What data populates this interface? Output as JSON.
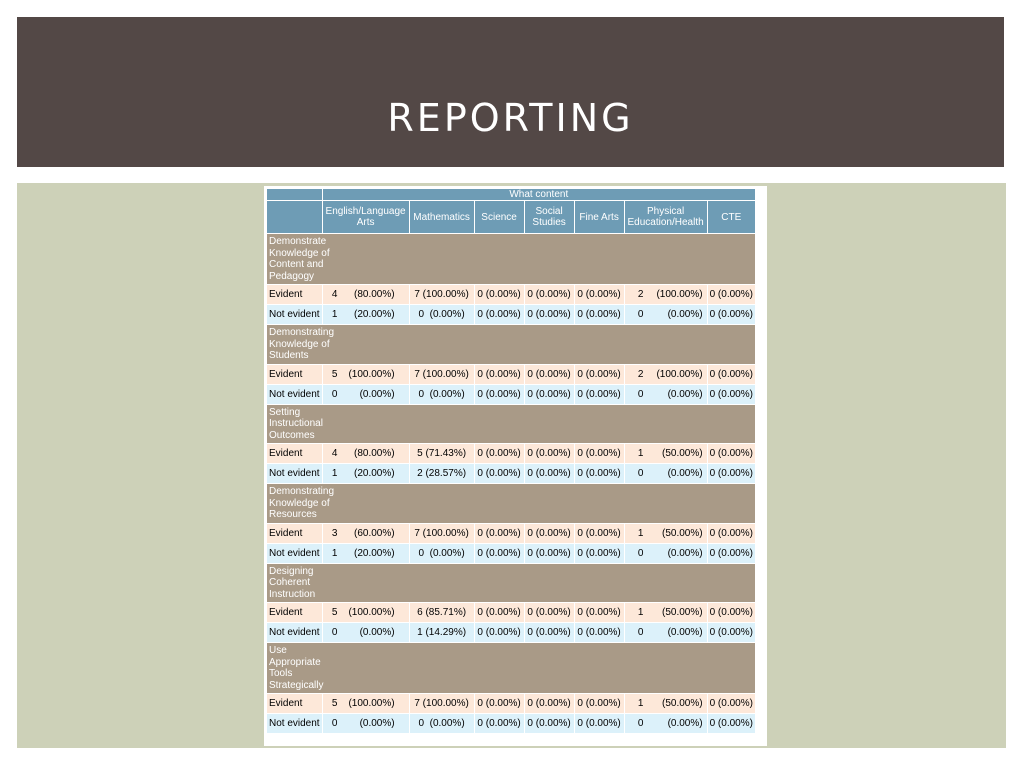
{
  "slide": {
    "title": "REPORTING"
  },
  "table": {
    "group_header": "What content",
    "columns": [
      "English/Language Arts",
      "Mathematics",
      "Science",
      "Social Studies",
      "Fine Arts",
      "Physical Education/Health",
      "CTE"
    ],
    "columns_lines": [
      [
        "English/Language",
        "Arts"
      ],
      [
        "Mathematics"
      ],
      [
        "Science"
      ],
      [
        "Social",
        "Studies"
      ],
      [
        "Fine Arts"
      ],
      [
        "Physical",
        "Education/Health"
      ],
      [
        "CTE"
      ]
    ],
    "sections": [
      {
        "title": "Demonstrate Knowledge of Content and Pedagogy",
        "title_lines": [
          "Demonstrate",
          "Knowledge of",
          "Content and",
          "Pedagogy"
        ],
        "rows": [
          {
            "label": "Evident",
            "ela": [
              "4",
              "(80.00%)"
            ],
            "math": "7 (100.00%)",
            "science": "0 (0.00%)",
            "social": "0 (0.00%)",
            "fine": "0 (0.00%)",
            "pe": [
              "2",
              "(100.00%)"
            ],
            "cte": "0 (0.00%)"
          },
          {
            "label": "Not evident",
            "ela": [
              "1",
              "(20.00%)"
            ],
            "math": "0  (0.00%)",
            "science": "0 (0.00%)",
            "social": "0 (0.00%)",
            "fine": "0 (0.00%)",
            "pe": [
              "0",
              "(0.00%)"
            ],
            "cte": "0 (0.00%)"
          }
        ]
      },
      {
        "title": "Demonstrating Knowledge of Students",
        "title_lines": [
          "Demonstrating",
          "Knowledge of",
          "Students"
        ],
        "rows": [
          {
            "label": "Evident",
            "ela": [
              "5",
              "(100.00%)"
            ],
            "math": "7 (100.00%)",
            "science": "0 (0.00%)",
            "social": "0 (0.00%)",
            "fine": "0 (0.00%)",
            "pe": [
              "2",
              "(100.00%)"
            ],
            "cte": "0 (0.00%)"
          },
          {
            "label": "Not evident",
            "ela": [
              "0",
              "(0.00%)"
            ],
            "math": "0  (0.00%)",
            "science": "0 (0.00%)",
            "social": "0 (0.00%)",
            "fine": "0 (0.00%)",
            "pe": [
              "0",
              "(0.00%)"
            ],
            "cte": "0 (0.00%)"
          }
        ]
      },
      {
        "title": "Setting Instructional Outcomes",
        "title_lines": [
          "Setting",
          "Instructional",
          "Outcomes"
        ],
        "rows": [
          {
            "label": "Evident",
            "ela": [
              "4",
              "(80.00%)"
            ],
            "math": "5 (71.43%)",
            "science": "0 (0.00%)",
            "social": "0 (0.00%)",
            "fine": "0 (0.00%)",
            "pe": [
              "1",
              "(50.00%)"
            ],
            "cte": "0 (0.00%)"
          },
          {
            "label": "Not evident",
            "ela": [
              "1",
              "(20.00%)"
            ],
            "math": "2 (28.57%)",
            "science": "0 (0.00%)",
            "social": "0 (0.00%)",
            "fine": "0 (0.00%)",
            "pe": [
              "0",
              "(0.00%)"
            ],
            "cte": "0 (0.00%)"
          }
        ]
      },
      {
        "title": "Demonstrating Knowledge of Resources",
        "title_lines": [
          "Demonstrating",
          "Knowledge of",
          "Resources"
        ],
        "rows": [
          {
            "label": "Evident",
            "ela": [
              "3",
              "(60.00%)"
            ],
            "math": "7 (100.00%)",
            "science": "0 (0.00%)",
            "social": "0 (0.00%)",
            "fine": "0 (0.00%)",
            "pe": [
              "1",
              "(50.00%)"
            ],
            "cte": "0 (0.00%)"
          },
          {
            "label": "Not evident",
            "ela": [
              "1",
              "(20.00%)"
            ],
            "math": "0  (0.00%)",
            "science": "0 (0.00%)",
            "social": "0 (0.00%)",
            "fine": "0 (0.00%)",
            "pe": [
              "0",
              "(0.00%)"
            ],
            "cte": "0 (0.00%)"
          }
        ]
      },
      {
        "title": "Designing Coherent Instruction",
        "title_lines": [
          "Designing",
          "Coherent",
          "Instruction"
        ],
        "rows": [
          {
            "label": "Evident",
            "ela": [
              "5",
              "(100.00%)"
            ],
            "math": "6 (85.71%)",
            "science": "0 (0.00%)",
            "social": "0 (0.00%)",
            "fine": "0 (0.00%)",
            "pe": [
              "1",
              "(50.00%)"
            ],
            "cte": "0 (0.00%)"
          },
          {
            "label": "Not evident",
            "ela": [
              "0",
              "(0.00%)"
            ],
            "math": "1 (14.29%)",
            "science": "0 (0.00%)",
            "social": "0 (0.00%)",
            "fine": "0 (0.00%)",
            "pe": [
              "0",
              "(0.00%)"
            ],
            "cte": "0 (0.00%)"
          }
        ]
      },
      {
        "title": "Use Appropriate Tools Strategically",
        "title_lines": [
          "Use",
          "Appropriate",
          "Tools",
          "Strategically"
        ],
        "rows": [
          {
            "label": "Evident",
            "ela": [
              "5",
              "(100.00%)"
            ],
            "math": "7 (100.00%)",
            "science": "0 (0.00%)",
            "social": "0 (0.00%)",
            "fine": "0 (0.00%)",
            "pe": [
              "1",
              "(50.00%)"
            ],
            "cte": "0 (0.00%)"
          },
          {
            "label": "Not evident",
            "ela": [
              "0",
              "(0.00%)"
            ],
            "math": "0  (0.00%)",
            "science": "0 (0.00%)",
            "social": "0 (0.00%)",
            "fine": "0 (0.00%)",
            "pe": [
              "0",
              "(0.00%)"
            ],
            "cte": "0 (0.00%)"
          }
        ]
      }
    ]
  },
  "colors": {
    "banner": "#534846",
    "content_bg": "#cdd1b8",
    "header": "#6e9cb5",
    "section": "#a99a87",
    "evident_row": "#fde8d9",
    "not_evident_row": "#dcf1fa"
  }
}
